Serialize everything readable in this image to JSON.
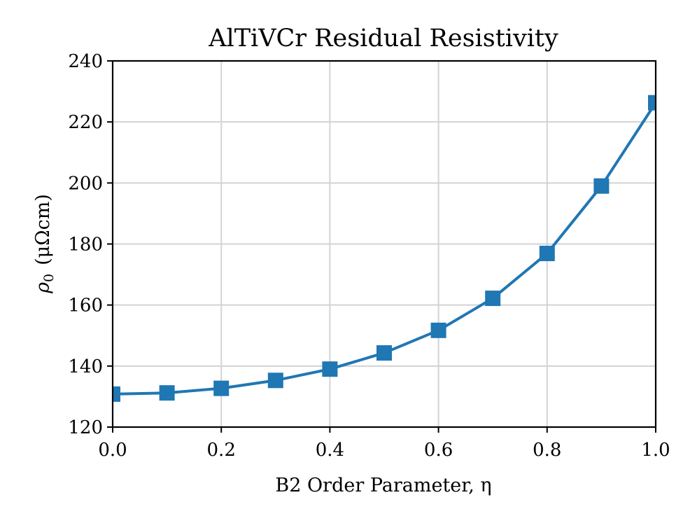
{
  "chart_data": {
    "type": "line",
    "title": "AlTiVCr Residual Resistivity",
    "xlabel": "B2 Order Parameter, η",
    "ylabel": {
      "symbol": "ρ",
      "subscript": "0",
      "units": "(μΩcm)"
    },
    "xlim": [
      0.0,
      1.0
    ],
    "ylim": [
      120,
      240
    ],
    "xticks": [
      "0.0",
      "0.2",
      "0.4",
      "0.6",
      "0.8",
      "1.0"
    ],
    "yticks": [
      "120",
      "140",
      "160",
      "180",
      "200",
      "220",
      "240"
    ],
    "grid": true,
    "series": [
      {
        "name": "ρ0",
        "color": "#1f77b4",
        "marker": "square",
        "x": [
          0.0,
          0.1,
          0.2,
          0.3,
          0.4,
          0.5,
          0.6,
          0.7,
          0.8,
          0.9,
          1.0
        ],
        "y": [
          130.8,
          131.2,
          132.7,
          135.3,
          139.0,
          144.3,
          151.7,
          162.2,
          176.9,
          199.0,
          226.3
        ]
      }
    ]
  }
}
